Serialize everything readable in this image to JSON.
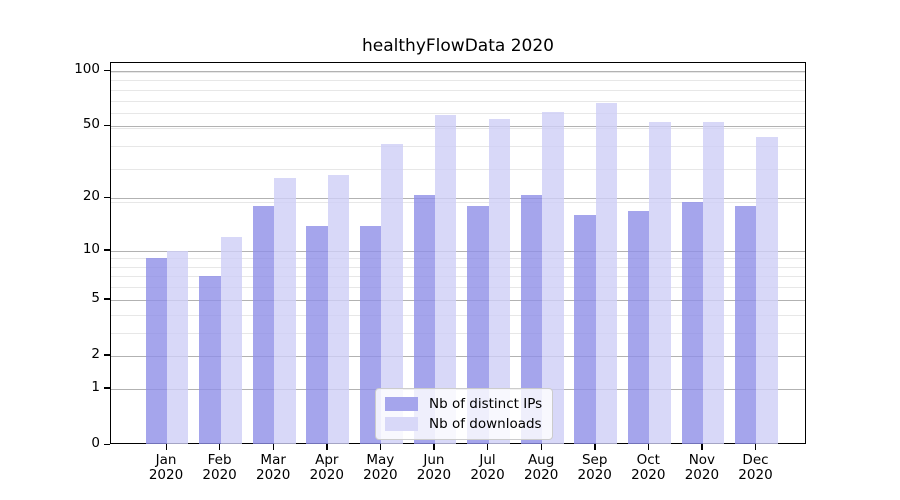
{
  "title": "healthyFlowData 2020",
  "chart_data": {
    "type": "bar",
    "title": "healthyFlowData 2020",
    "categories": [
      "Jan 2020",
      "Feb 2020",
      "Mar 2020",
      "Apr 2020",
      "May 2020",
      "Jun 2020",
      "Jul 2020",
      "Aug 2020",
      "Sep 2020",
      "Oct 2020",
      "Nov 2020",
      "Dec 2020"
    ],
    "x_tick_line1": [
      "Jan",
      "Feb",
      "Mar",
      "Apr",
      "May",
      "Jun",
      "Jul",
      "Aug",
      "Sep",
      "Oct",
      "Nov",
      "Dec"
    ],
    "x_tick_line2": [
      "2020",
      "2020",
      "2020",
      "2020",
      "2020",
      "2020",
      "2020",
      "2020",
      "2020",
      "2020",
      "2020",
      "2020"
    ],
    "series": [
      {
        "name": "Nb of distinct IPs",
        "color": "#a5a5ec",
        "color_rgba": "rgba(143,143,231,0.8)",
        "values": [
          9,
          7,
          18,
          14,
          14,
          21,
          18,
          21,
          16,
          17,
          19,
          18
        ]
      },
      {
        "name": "Nb of downloads",
        "color": "#d8d8f8",
        "color_rgba": "rgba(206,206,246,0.8)",
        "values": [
          10,
          12,
          26,
          27,
          40,
          58,
          55,
          60,
          67,
          53,
          53,
          44
        ]
      }
    ],
    "xlabel": "",
    "ylabel": "",
    "yscale": "log(1+v)",
    "ylim": [
      0,
      110.5
    ],
    "y_ticks": [
      0,
      1,
      2,
      5,
      10,
      20,
      50,
      100
    ],
    "y_tick_labels": [
      "0",
      "1",
      "2",
      "5",
      "10",
      "20",
      "50",
      "100"
    ],
    "y_minor_gridlines_v": [
      3,
      4,
      6,
      7,
      8,
      9,
      19,
      29,
      39,
      49,
      59,
      69,
      79,
      89,
      99
    ],
    "grid": "horizontal major + minor",
    "legend_position": "lower center"
  },
  "colors": {
    "background": "#ffffff",
    "spine": "#000000",
    "grid_major": "#b2b2b2",
    "grid_minor": "#e7e7e7",
    "text": "#000000",
    "legend_border": "#cccccc"
  }
}
